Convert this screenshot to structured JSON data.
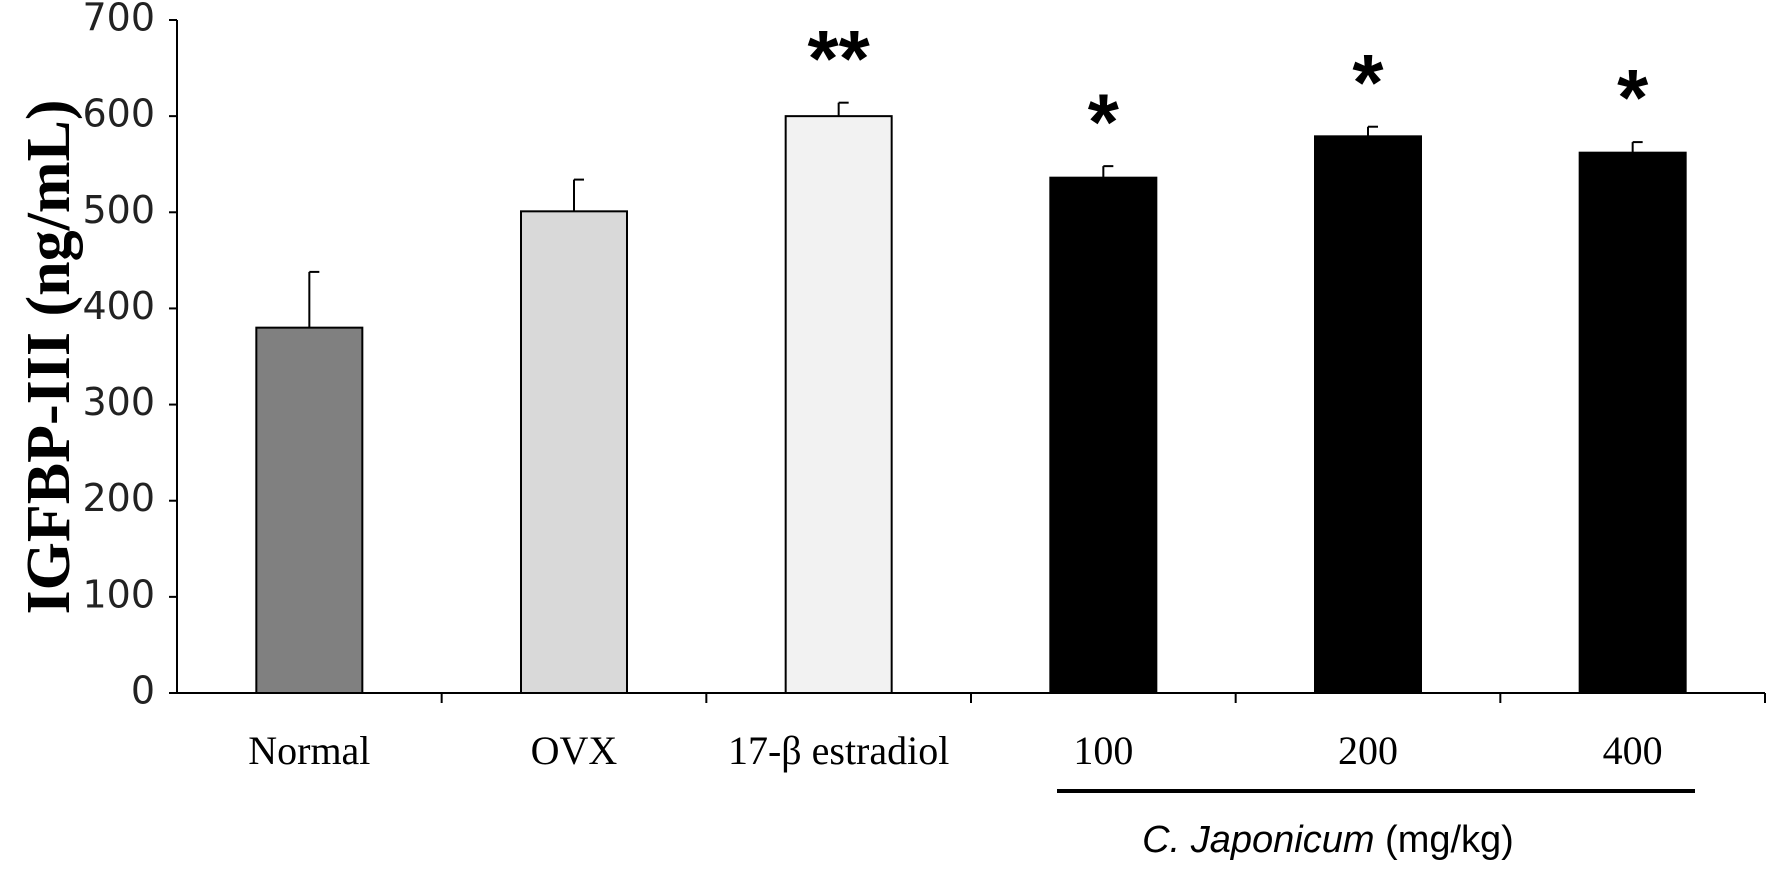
{
  "chart_data": {
    "type": "bar",
    "y_label": "IGFBP-III (ng/mL)",
    "categories": [
      "Normal",
      "OVX",
      "17-β estradiol",
      "100",
      "200",
      "400"
    ],
    "values": [
      380,
      501,
      600,
      536,
      579,
      562
    ],
    "errors": [
      58,
      33,
      14,
      12,
      10,
      11
    ],
    "colors": [
      "#808080",
      "#d9d9d9",
      "#f2f2f2",
      "#000000",
      "#000000",
      "#000000"
    ],
    "significance": [
      null,
      null,
      "**",
      "*",
      "*",
      "*"
    ],
    "group_label": {
      "italic": "C. Japonicum",
      "text": "(mg/kg)"
    },
    "ylim": [
      0,
      700
    ],
    "yticks": [
      0,
      100,
      200,
      300,
      400,
      500,
      600,
      700
    ]
  }
}
